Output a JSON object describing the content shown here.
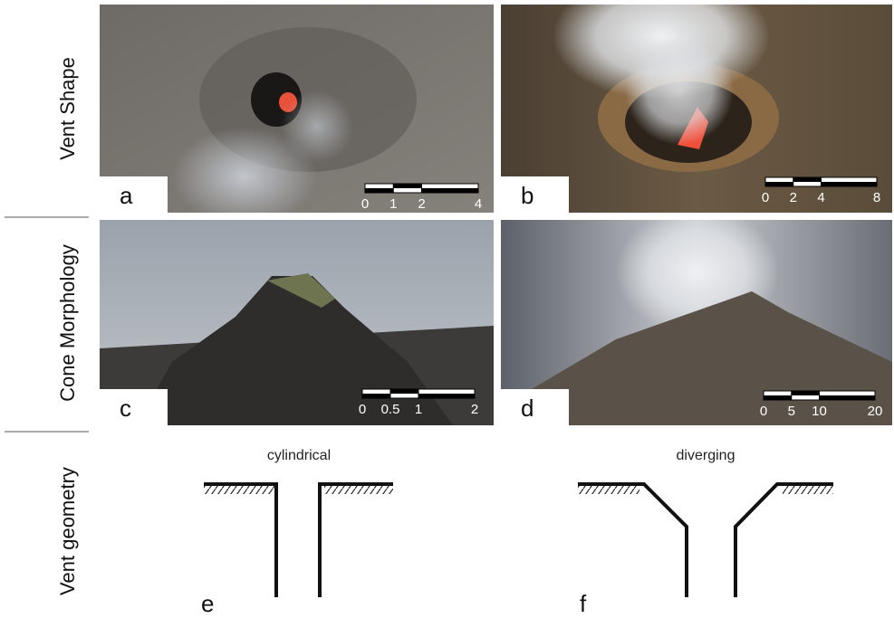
{
  "rows": [
    "Vent Shape",
    "Cone Morphology",
    "Vent geometry"
  ],
  "panels": [
    {
      "letter": "a",
      "scale": {
        "ticks": [
          0,
          1,
          2,
          4
        ]
      }
    },
    {
      "letter": "b",
      "scale": {
        "ticks": [
          0,
          2,
          4,
          8
        ]
      }
    },
    {
      "letter": "c",
      "scale": {
        "ticks": [
          0,
          0.5,
          1,
          2
        ]
      }
    },
    {
      "letter": "d",
      "scale": {
        "ticks": [
          0,
          5,
          10,
          20
        ]
      }
    },
    {
      "letter": "e",
      "title": "cylindrical"
    },
    {
      "letter": "f",
      "title": "diverging"
    }
  ]
}
